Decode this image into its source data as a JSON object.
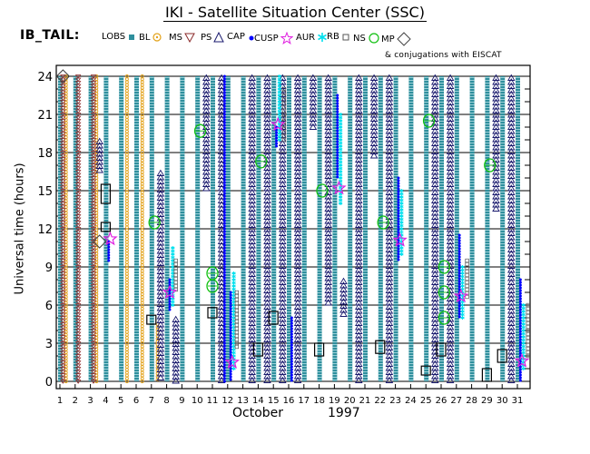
{
  "header": {
    "title": "IKI - Satellite Situation Center (SSC)",
    "region_label": "IB_TAIL:",
    "conjugation_note": "& conjugations with EISCAT"
  },
  "legend": [
    {
      "label": "LOBS",
      "symbol": "square-filled",
      "color": "#2f8f9d"
    },
    {
      "label": "BL",
      "symbol": "circle-dot",
      "color": "#e3a21a"
    },
    {
      "label": "MS",
      "symbol": "triangle-down",
      "color": "#8b2b2b"
    },
    {
      "label": "PS",
      "symbol": "triangle-up",
      "color": "#1a1a6e"
    },
    {
      "label": "CAP",
      "symbol": "dot",
      "color": "#0000ff"
    },
    {
      "label": "CUSP",
      "symbol": "star",
      "color": "#e020e0"
    },
    {
      "label": "AUR",
      "symbol": "asterisk",
      "color": "#00e0ee"
    },
    {
      "label": "RB",
      "symbol": "square-open",
      "color": "#555555"
    },
    {
      "label": "NS",
      "symbol": "circle-open",
      "color": "#10c010"
    },
    {
      "label": "MP",
      "symbol": "diamond",
      "color": "#444444"
    }
  ],
  "chart_data": {
    "type": "scatter",
    "title": "IKI - Satellite Situation Center (SSC)",
    "xlabel": "October",
    "xlabel_year": "1997",
    "ylabel": "Universal time (hours)",
    "xlim": [
      1,
      31
    ],
    "ylim": [
      0,
      24
    ],
    "x_ticks": [
      "1",
      "2",
      "3",
      "4",
      "5",
      "6",
      "7",
      "8",
      "9",
      "10",
      "11",
      "12",
      "13",
      "14",
      "15",
      "16",
      "17",
      "18",
      "19",
      "20",
      "21",
      "22",
      "23",
      "24",
      "25",
      "26",
      "27",
      "28",
      "29",
      "30",
      "31"
    ],
    "y_ticks": [
      "0",
      "3",
      "6",
      "9",
      "12",
      "15",
      "18",
      "21",
      "24"
    ],
    "grid": "horizontal",
    "series": [
      {
        "name": "LOBS",
        "segments": [
          {
            "day": 1,
            "from": 0,
            "to": 24
          },
          {
            "day": 2,
            "from": 0,
            "to": 24
          },
          {
            "day": 3,
            "from": 0,
            "to": 24
          },
          {
            "day": 4,
            "from": 0,
            "to": 24
          },
          {
            "day": 5,
            "from": 0,
            "to": 24
          },
          {
            "day": 6,
            "from": 0,
            "to": 24
          },
          {
            "day": 7,
            "from": 0,
            "to": 24
          },
          {
            "day": 8,
            "from": 0,
            "to": 24
          },
          {
            "day": 9,
            "from": 0,
            "to": 24
          },
          {
            "day": 10,
            "from": 0,
            "to": 24
          },
          {
            "day": 11,
            "from": 0,
            "to": 24
          },
          {
            "day": 12,
            "from": 0,
            "to": 24
          },
          {
            "day": 13,
            "from": 0,
            "to": 24
          },
          {
            "day": 14,
            "from": 0,
            "to": 24
          },
          {
            "day": 15,
            "from": 0,
            "to": 24
          },
          {
            "day": 16,
            "from": 0,
            "to": 24
          },
          {
            "day": 17,
            "from": 0,
            "to": 24
          },
          {
            "day": 18,
            "from": 0,
            "to": 24
          },
          {
            "day": 19,
            "from": 0,
            "to": 24
          },
          {
            "day": 20,
            "from": 0,
            "to": 24
          },
          {
            "day": 21,
            "from": 0,
            "to": 24
          },
          {
            "day": 22,
            "from": 0,
            "to": 24
          },
          {
            "day": 23,
            "from": 0,
            "to": 24
          },
          {
            "day": 24,
            "from": 0,
            "to": 24
          },
          {
            "day": 25,
            "from": 0,
            "to": 24
          },
          {
            "day": 26,
            "from": 0,
            "to": 24
          },
          {
            "day": 27,
            "from": 0,
            "to": 24
          },
          {
            "day": 28,
            "from": 0,
            "to": 24
          },
          {
            "day": 29,
            "from": 0,
            "to": 24
          },
          {
            "day": 30,
            "from": 0,
            "to": 24
          },
          {
            "day": 31,
            "from": 0,
            "to": 24
          }
        ]
      },
      {
        "name": "BL",
        "segments": [
          {
            "day": 1.4,
            "from": 0,
            "to": 24
          },
          {
            "day": 3.4,
            "from": 0,
            "to": 24
          },
          {
            "day": 5.4,
            "from": 0,
            "to": 24
          },
          {
            "day": 6.4,
            "from": 0,
            "to": 24
          },
          {
            "day": 7.4,
            "from": 0,
            "to": 4.5
          }
        ]
      },
      {
        "name": "MS",
        "segments": [
          {
            "day": 1.2,
            "from": 0,
            "to": 24
          },
          {
            "day": 2.2,
            "from": 0,
            "to": 24
          },
          {
            "day": 3.2,
            "from": 0,
            "to": 24
          }
        ]
      },
      {
        "name": "PS",
        "segments": [
          {
            "day": 3.6,
            "from": 16.5,
            "to": 19
          },
          {
            "day": 7.6,
            "from": 0,
            "to": 16.5
          },
          {
            "day": 8.6,
            "from": 0,
            "to": 5
          },
          {
            "day": 10.6,
            "from": 15,
            "to": 24
          },
          {
            "day": 11.6,
            "from": 0,
            "to": 24
          },
          {
            "day": 13.6,
            "from": 0,
            "to": 24
          },
          {
            "day": 14.6,
            "from": 0,
            "to": 24
          },
          {
            "day": 15.6,
            "from": 0,
            "to": 24
          },
          {
            "day": 16.6,
            "from": 0,
            "to": 24
          },
          {
            "day": 17.6,
            "from": 20,
            "to": 24
          },
          {
            "day": 18.6,
            "from": 6,
            "to": 24
          },
          {
            "day": 19.6,
            "from": 5,
            "to": 8
          },
          {
            "day": 20.6,
            "from": 0,
            "to": 24
          },
          {
            "day": 21.6,
            "from": 17.5,
            "to": 24
          },
          {
            "day": 22.6,
            "from": 0,
            "to": 24
          },
          {
            "day": 25.6,
            "from": 0,
            "to": 24
          },
          {
            "day": 26.6,
            "from": 0,
            "to": 24
          },
          {
            "day": 29.6,
            "from": 13.5,
            "to": 24
          },
          {
            "day": 30.6,
            "from": 0,
            "to": 24
          }
        ]
      },
      {
        "name": "CAP",
        "segments": [
          {
            "day": 4.2,
            "from": 9.5,
            "to": 11
          },
          {
            "day": 8.2,
            "from": 5.5,
            "to": 8
          },
          {
            "day": 11.8,
            "from": 0,
            "to": 24
          },
          {
            "day": 12.2,
            "from": 0,
            "to": 7
          },
          {
            "day": 15.2,
            "from": 18.5,
            "to": 20
          },
          {
            "day": 16.2,
            "from": 0,
            "to": 5
          },
          {
            "day": 19.2,
            "from": 16,
            "to": 22.5
          },
          {
            "day": 23.2,
            "from": 9.5,
            "to": 16
          },
          {
            "day": 27.2,
            "from": 5,
            "to": 11.5
          },
          {
            "day": 31.2,
            "from": 0,
            "to": 8
          }
        ]
      },
      {
        "name": "AUR",
        "segments": [
          {
            "day": 8.4,
            "from": 6,
            "to": 10.5
          },
          {
            "day": 12.4,
            "from": 1,
            "to": 8.5
          },
          {
            "day": 15.4,
            "from": 19,
            "to": 24
          },
          {
            "day": 19.4,
            "from": 14,
            "to": 21
          },
          {
            "day": 23.4,
            "from": 10,
            "to": 15
          },
          {
            "day": 27.4,
            "from": 5,
            "to": 9
          },
          {
            "day": 31.4,
            "from": 1,
            "to": 6
          }
        ]
      },
      {
        "name": "RB",
        "segments": [
          {
            "day": 8.6,
            "from": 7,
            "to": 9.5
          },
          {
            "day": 12.6,
            "from": 2.5,
            "to": 7
          },
          {
            "day": 15.7,
            "from": 19,
            "to": 23
          },
          {
            "day": 27.7,
            "from": 6.5,
            "to": 9.5
          },
          {
            "day": 31.7,
            "from": 2,
            "to": 6
          }
        ]
      },
      {
        "name": "NS",
        "points": [
          {
            "day": 7.2,
            "ut": 12.5
          },
          {
            "day": 10.2,
            "ut": 19.7
          },
          {
            "day": 11,
            "ut": 8.5
          },
          {
            "day": 11,
            "ut": 7.5
          },
          {
            "day": 14.2,
            "ut": 17.3
          },
          {
            "day": 18.2,
            "ut": 15
          },
          {
            "day": 22.2,
            "ut": 12.5
          },
          {
            "day": 25.2,
            "ut": 20.5
          },
          {
            "day": 26.2,
            "ut": 9
          },
          {
            "day": 26.2,
            "ut": 7
          },
          {
            "day": 26.2,
            "ut": 5
          },
          {
            "day": 29.2,
            "ut": 17
          }
        ]
      },
      {
        "name": "CUSP",
        "points": [
          {
            "day": 4.3,
            "ut": 11.2
          },
          {
            "day": 8.2,
            "ut": 7
          },
          {
            "day": 12.3,
            "ut": 1.5
          },
          {
            "day": 15.3,
            "ut": 20.2
          },
          {
            "day": 19.3,
            "ut": 15.2
          },
          {
            "day": 23.3,
            "ut": 11.1
          },
          {
            "day": 27.3,
            "ut": 6.7
          },
          {
            "day": 31.3,
            "ut": 1.6
          }
        ]
      },
      {
        "name": "MP",
        "points": [
          {
            "day": 1.2,
            "ut": 24
          },
          {
            "day": 3.6,
            "ut": 11
          }
        ]
      },
      {
        "name": "EISCAT conjugation",
        "intervals": [
          {
            "day": 4,
            "from": 14,
            "to": 15.5
          },
          {
            "day": 4,
            "from": 11.8,
            "to": 12.5
          },
          {
            "day": 7,
            "from": 4.5,
            "to": 5.2
          },
          {
            "day": 11,
            "from": 5,
            "to": 5.8
          },
          {
            "day": 14,
            "from": 2,
            "to": 3
          },
          {
            "day": 15,
            "from": 4.5,
            "to": 5.5
          },
          {
            "day": 18,
            "from": 2,
            "to": 3
          },
          {
            "day": 22,
            "from": 2.2,
            "to": 3.2
          },
          {
            "day": 25,
            "from": 0.5,
            "to": 1.2
          },
          {
            "day": 26,
            "from": 2,
            "to": 3
          },
          {
            "day": 29,
            "from": 0,
            "to": 1
          },
          {
            "day": 30,
            "from": 1.5,
            "to": 2.5
          }
        ]
      }
    ]
  }
}
